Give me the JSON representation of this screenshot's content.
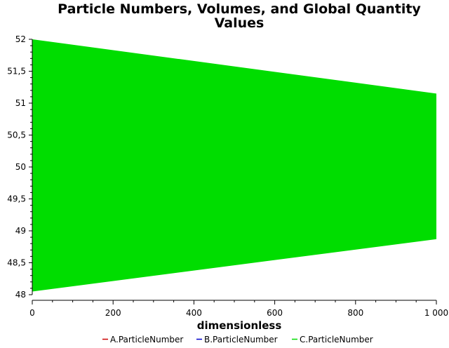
{
  "chart_data": {
    "type": "area",
    "title_lines": [
      "Particle Numbers, Volumes, and Global Quantity",
      "Values"
    ],
    "xlabel": "dimensionless",
    "ylabel": "",
    "xlim": [
      0,
      1000
    ],
    "ylim": [
      48,
      52
    ],
    "x_ticks": [
      0,
      200,
      400,
      600,
      800,
      1000
    ],
    "x_tick_labels": [
      "0",
      "200",
      "400",
      "600",
      "800",
      "1 000"
    ],
    "y_ticks": [
      48,
      48.5,
      49,
      49.5,
      50,
      50.5,
      51,
      51.5,
      52
    ],
    "y_tick_labels": [
      "48",
      "48,5",
      "49",
      "49,5",
      "50",
      "50,5",
      "51",
      "51,5",
      "52"
    ],
    "grid": false,
    "legend_position": "bottom",
    "series": [
      {
        "name": "A.ParticleNumber",
        "color": "#cc0000",
        "band": null
      },
      {
        "name": "B.ParticleNumber",
        "color": "#0000cc",
        "band": null
      },
      {
        "name": "C.ParticleNumber",
        "color": "#00dd00",
        "band": {
          "x": [
            0,
            1000
          ],
          "upper": [
            52.0,
            51.15
          ],
          "lower": [
            48.05,
            48.87
          ]
        }
      }
    ]
  }
}
